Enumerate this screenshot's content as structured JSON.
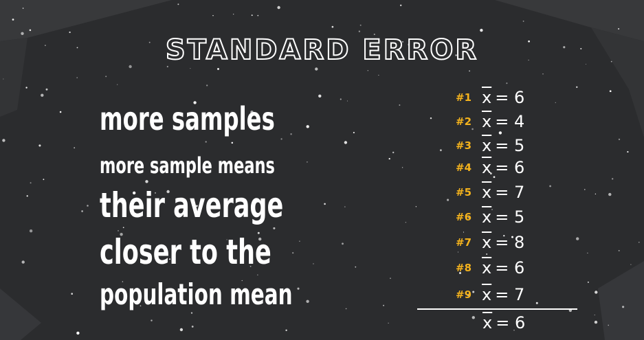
{
  "title": "STANDARD ERROR",
  "colors": {
    "background": "#2b2c2e",
    "panel_edge": "#3a3b3d",
    "text": "#ffffff",
    "accent": "#f3b21d"
  },
  "explanation": {
    "line1": "more samples",
    "line2": "more sample means",
    "line3": "their average",
    "line4": "closer to the",
    "line5": "population mean"
  },
  "samples": [
    {
      "label": "#1",
      "symbol": "x",
      "value": "= 6"
    },
    {
      "label": "#2",
      "symbol": "x",
      "value": "= 4"
    },
    {
      "label": "#3",
      "symbol": "x",
      "value": "= 5"
    },
    {
      "label": "#4",
      "symbol": "x",
      "value": "= 6"
    },
    {
      "label": "#5",
      "symbol": "x",
      "value": "= 7"
    },
    {
      "label": "#6",
      "symbol": "x",
      "value": "= 5"
    },
    {
      "label": "#7",
      "symbol": "x",
      "value": "= 8"
    },
    {
      "label": "#8",
      "symbol": "x",
      "value": "= 6"
    },
    {
      "label": "#9",
      "symbol": "x",
      "value": "= 7"
    }
  ],
  "total": {
    "symbol": "x",
    "value": "= 6"
  }
}
